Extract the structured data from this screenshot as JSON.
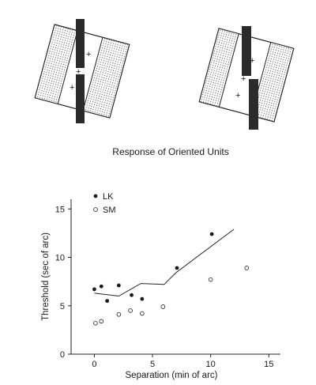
{
  "caption": "Response of Oriented Units",
  "chart_data": {
    "type": "scatter",
    "xlabel": "Separation (min of arc)",
    "ylabel": "Threshold (sec of arc)",
    "xlim": [
      -2,
      16
    ],
    "ylim": [
      0,
      16
    ],
    "xticks": [
      0,
      5,
      10,
      15
    ],
    "yticks": [
      0,
      5,
      10,
      15
    ],
    "grid": false,
    "legend": "top-left",
    "series": [
      {
        "name": "LK",
        "marker": "filled-circle",
        "color": "#1a1a1a",
        "points": [
          [
            0,
            6.7
          ],
          [
            0.6,
            7.0
          ],
          [
            1.1,
            5.5
          ],
          [
            2.1,
            7.1
          ],
          [
            3.2,
            6.1
          ],
          [
            4.1,
            5.7
          ],
          [
            7.1,
            8.9
          ],
          [
            10.1,
            12.4
          ]
        ]
      },
      {
        "name": "SM",
        "marker": "open-circle",
        "color": "#1a1a1a",
        "points": [
          [
            0.1,
            3.2
          ],
          [
            0.6,
            3.4
          ],
          [
            2.1,
            4.1
          ],
          [
            3.1,
            4.5
          ],
          [
            4.1,
            4.2
          ],
          [
            5.9,
            4.9
          ],
          [
            10.0,
            7.7
          ],
          [
            13.1,
            8.9
          ]
        ]
      },
      {
        "marker": "line",
        "color": "#1a1a1a",
        "points": [
          [
            0,
            6.3
          ],
          [
            2.1,
            6.0
          ],
          [
            4.0,
            7.3
          ],
          [
            6.0,
            7.2
          ],
          [
            7.0,
            8.4
          ],
          [
            12.0,
            12.9
          ]
        ]
      }
    ]
  }
}
